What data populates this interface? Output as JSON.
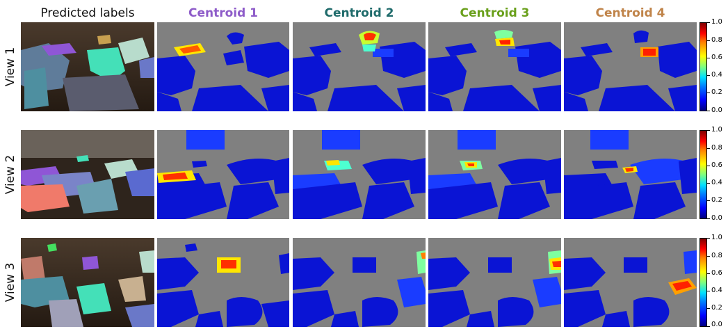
{
  "columns": [
    {
      "label": "Predicted labels",
      "color": "#111111"
    },
    {
      "label": "Centroid 1",
      "color": "#8e5cc9"
    },
    {
      "label": "Centroid 2",
      "color": "#1f6b6b"
    },
    {
      "label": "Centroid 3",
      "color": "#6aa01c"
    },
    {
      "label": "Centroid 4",
      "color": "#c0844a"
    }
  ],
  "rows": [
    {
      "label": "View 1"
    },
    {
      "label": "View 2"
    },
    {
      "label": "View 3"
    }
  ],
  "colorbar": {
    "colormap": "jet",
    "ticks": [
      "0.0",
      "0.2",
      "0.4",
      "0.6",
      "0.8",
      "1.0"
    ]
  },
  "colors": {
    "background_gray": "#808080",
    "object_blue": "#0a14d4",
    "floor_dark": "#3a2c22"
  }
}
